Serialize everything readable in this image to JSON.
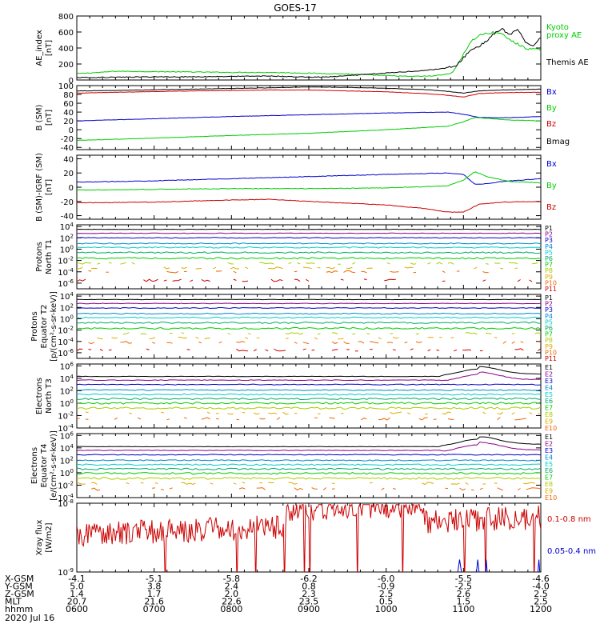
{
  "title": "GOES-17",
  "date_label": "2020 Jul 16",
  "footer_rows": [
    {
      "label": "X-GSM",
      "values": [
        "-4.1",
        "-5.1",
        "-5.8",
        "-6.2",
        "-6.0",
        "-5.5",
        "-4.6"
      ]
    },
    {
      "label": "Y-GSM",
      "values": [
        "5.0",
        "3.8",
        "2.4",
        "0.8",
        "-0.9",
        "-2.5",
        "-4.0"
      ]
    },
    {
      "label": "Z-GSM",
      "values": [
        "1.4",
        "1.7",
        "2.0",
        "2.3",
        "2.5",
        "2.6",
        "2.5"
      ]
    },
    {
      "label": "MLT",
      "values": [
        "20.7",
        "21.6",
        "22.6",
        "23.5",
        "0.5",
        "1.5",
        "2.5"
      ]
    },
    {
      "label": "hhmm",
      "values": [
        "0600",
        "0700",
        "0800",
        "0900",
        "1000",
        "1100",
        "1200"
      ]
    }
  ],
  "colors": {
    "black": "#000000",
    "green": "#00cc00",
    "blue": "#0000cc",
    "red": "#cc0000",
    "p_colors": [
      "#000000",
      "#880088",
      "#0000cc",
      "#0088cc",
      "#00cccc",
      "#00aa66",
      "#00cc00",
      "#aacc00",
      "#ddaa00",
      "#ee6600",
      "#cc0000"
    ]
  },
  "chart_data": [
    {
      "type": "line",
      "ylabel": "AE_index\n[nT]",
      "ylim": [
        0,
        800
      ],
      "yticks": [
        "0",
        "200",
        "400",
        "600",
        "800"
      ],
      "series": [
        {
          "name": "Kyoto\nproxy AE",
          "color": "green",
          "x": [
            6.0,
            6.3,
            6.5,
            7.0,
            7.5,
            8.0,
            8.5,
            9.0,
            9.5,
            10.0,
            10.3,
            10.6,
            10.8,
            10.9,
            11.0,
            11.1,
            11.2,
            11.3,
            11.45,
            11.6,
            11.8,
            12.0
          ],
          "y": [
            80,
            95,
            110,
            105,
            100,
            95,
            95,
            85,
            75,
            55,
            45,
            50,
            75,
            140,
            330,
            480,
            560,
            580,
            600,
            500,
            400,
            370
          ]
        },
        {
          "name": "Themis AE",
          "color": "black",
          "x": [
            6.0,
            6.5,
            7.0,
            7.5,
            8.0,
            8.5,
            9.0,
            9.3,
            9.6,
            9.9,
            10.2,
            10.5,
            10.7,
            10.9,
            11.0,
            11.1,
            11.2,
            11.3,
            11.4,
            11.5,
            11.6,
            11.7,
            11.8,
            11.9,
            12.0
          ],
          "y": [
            30,
            35,
            40,
            40,
            45,
            50,
            35,
            40,
            60,
            80,
            100,
            120,
            140,
            170,
            280,
            380,
            420,
            490,
            580,
            640,
            560,
            640,
            460,
            430,
            540
          ]
        }
      ],
      "legend": [
        {
          "text": "Kyoto",
          "color": "green"
        },
        {
          "text": "proxy AE",
          "color": "green"
        },
        {
          "text": "Themis AE",
          "color": "black"
        }
      ]
    },
    {
      "type": "line",
      "ylabel": "B (SM)\n[nT]",
      "ylim": [
        -45,
        100
      ],
      "yticks": [
        "-40",
        "-20",
        "0",
        "20",
        "40",
        "60",
        "80",
        "100"
      ],
      "series": [
        {
          "name": "Bx",
          "color": "blue",
          "x": [
            6.0,
            7.0,
            8.0,
            9.0,
            10.0,
            10.8,
            11.0,
            11.2,
            11.5,
            12.0
          ],
          "y": [
            20,
            25,
            30,
            34,
            38,
            40,
            35,
            28,
            27,
            30
          ]
        },
        {
          "name": "By",
          "color": "green",
          "x": [
            6.0,
            7.0,
            8.0,
            9.0,
            10.0,
            10.8,
            11.0,
            11.15,
            11.3,
            11.6,
            12.0
          ],
          "y": [
            -24,
            -19,
            -13,
            -8,
            0,
            8,
            18,
            28,
            26,
            22,
            20
          ]
        },
        {
          "name": "Bz",
          "color": "red",
          "x": [
            6.0,
            6.5,
            7.5,
            8.5,
            9.0,
            9.5,
            10.0,
            10.5,
            10.8,
            11.0,
            11.2,
            11.5,
            12.0
          ],
          "y": [
            83,
            85,
            88,
            90,
            90,
            88,
            86,
            82,
            78,
            74,
            82,
            84,
            85
          ]
        },
        {
          "name": "Bmag",
          "color": "black",
          "x": [
            6.0,
            6.5,
            7.5,
            8.5,
            9.0,
            9.5,
            10.0,
            10.5,
            10.8,
            11.0,
            11.2,
            11.5,
            12.0
          ],
          "y": [
            88,
            89,
            92,
            95,
            97,
            96,
            94,
            91,
            87,
            83,
            88,
            90,
            92
          ]
        }
      ],
      "legend": [
        {
          "text": "Bx",
          "color": "blue"
        },
        {
          "text": "By",
          "color": "green"
        },
        {
          "text": "Bz",
          "color": "red"
        },
        {
          "text": "Bmag",
          "color": "black"
        }
      ]
    },
    {
      "type": "line",
      "ylabel": "B (SM)-IGRF (SM)\n[nT]",
      "ylim": [
        -45,
        45
      ],
      "yticks": [
        "-40",
        "-20",
        "0",
        "20",
        "40"
      ],
      "series": [
        {
          "name": "Bx",
          "color": "blue",
          "x": [
            6.0,
            7.0,
            8.0,
            9.0,
            10.0,
            10.8,
            11.0,
            11.15,
            11.3,
            11.5,
            12.0
          ],
          "y": [
            7,
            9,
            12,
            15,
            18,
            20,
            18,
            4,
            5,
            8,
            12
          ]
        },
        {
          "name": "By",
          "color": "green",
          "x": [
            6.0,
            7.0,
            8.0,
            9.0,
            10.0,
            10.8,
            11.0,
            11.15,
            11.3,
            11.6,
            12.0
          ],
          "y": [
            -4,
            -3,
            -2,
            -2,
            -1,
            2,
            10,
            22,
            15,
            8,
            6
          ]
        },
        {
          "name": "Bz",
          "color": "red",
          "x": [
            6.0,
            7.0,
            8.0,
            8.5,
            9.0,
            10.0,
            10.5,
            10.8,
            11.0,
            11.2,
            11.5,
            12.0
          ],
          "y": [
            -22,
            -21,
            -18,
            -17,
            -20,
            -25,
            -30,
            -35,
            -35,
            -24,
            -21,
            -20
          ]
        }
      ],
      "legend": [
        {
          "text": "Bx",
          "color": "blue"
        },
        {
          "text": "By",
          "color": "green"
        },
        {
          "text": "Bz",
          "color": "red"
        }
      ]
    },
    {
      "type": "line",
      "scale": "log",
      "ylabel": "Protons\nNorth T1",
      "ylim_exp": [
        -7,
        4.3
      ],
      "yticks": [
        "10^4",
        "10^2",
        "10^0",
        "10^-2",
        "10^-4",
        "10^-6"
      ],
      "channel_levels": [
        3.5,
        2.8,
        2.0,
        1.0,
        0.3,
        -0.6,
        -1.6,
        -2.5,
        -3.3,
        -4.0,
        -5.5
      ],
      "legend_labels": [
        "P1",
        "P2",
        "P3",
        "P4",
        "P5",
        "P6",
        "P7",
        "P8",
        "P9",
        "P10",
        "P11"
      ]
    },
    {
      "type": "line",
      "scale": "log",
      "ylabel": "Protons\nEquator T2\n[p/(cm²-s-sr-keV)]",
      "ylim_exp": [
        -7,
        4.3
      ],
      "yticks": [
        "10^4",
        "10^2",
        "10^0",
        "10^-2",
        "10^-4",
        "10^-6"
      ],
      "channel_levels": [
        3.4,
        2.7,
        1.9,
        0.9,
        0.2,
        -0.7,
        -1.7,
        -2.6,
        -3.4,
        -4.2,
        -5.5
      ],
      "legend_labels": [
        "P1",
        "P2",
        "P3",
        "P4",
        "P5",
        "P6",
        "P7",
        "P8",
        "P9",
        "P10",
        "P11"
      ]
    },
    {
      "type": "line",
      "scale": "log",
      "ylabel": "Electrons\nNorth T3",
      "ylim_exp": [
        -4,
        6.3
      ],
      "yticks": [
        "10^6",
        "10^4",
        "10^2",
        "10^0",
        "10^-2",
        "10^-4"
      ],
      "channel_levels": [
        4.3,
        3.7,
        3.0,
        2.1,
        1.4,
        0.7,
        0.0,
        -0.8,
        -1.6,
        -2.5
      ],
      "legend_labels": [
        "E1",
        "E2",
        "E3",
        "E4",
        "E5",
        "E6",
        "E7",
        "E8",
        "E9",
        "E10"
      ]
    },
    {
      "type": "line",
      "scale": "log",
      "ylabel": "Electrons\nEquator T4\n[e/(cm²-s-sr-keV)]",
      "ylim_exp": [
        -4,
        6.3
      ],
      "yticks": [
        "10^6",
        "10^4",
        "10^2",
        "10^0",
        "10^-2",
        "10^-4"
      ],
      "channel_levels": [
        4.2,
        3.6,
        2.9,
        2.0,
        1.3,
        0.6,
        -0.1,
        -0.9,
        -1.7,
        -2.6
      ],
      "legend_labels": [
        "E1",
        "E2",
        "E3",
        "E4",
        "E5",
        "E6",
        "E7",
        "E8",
        "E9",
        "E10"
      ]
    },
    {
      "type": "line",
      "scale": "log",
      "ylabel": "Xray flux\n[W/m2]",
      "ylim_exp": [
        -9,
        -8
      ],
      "yticks": [
        "10^-8",
        "10^-9"
      ],
      "series": [
        {
          "name": "0.1-0.8 nm",
          "color": "red"
        },
        {
          "name": "0.05-0.4 nm",
          "color": "blue"
        }
      ],
      "legend": [
        {
          "text": "0.1-0.8 nm",
          "color": "red"
        },
        {
          "text": "0.05-0.4 nm",
          "color": "blue"
        }
      ]
    }
  ],
  "xaxis": {
    "xlim": [
      6.0,
      12.0
    ],
    "major_ticks": [
      6,
      7,
      8,
      9,
      10,
      11,
      12
    ],
    "minor_per_hour": 6
  }
}
